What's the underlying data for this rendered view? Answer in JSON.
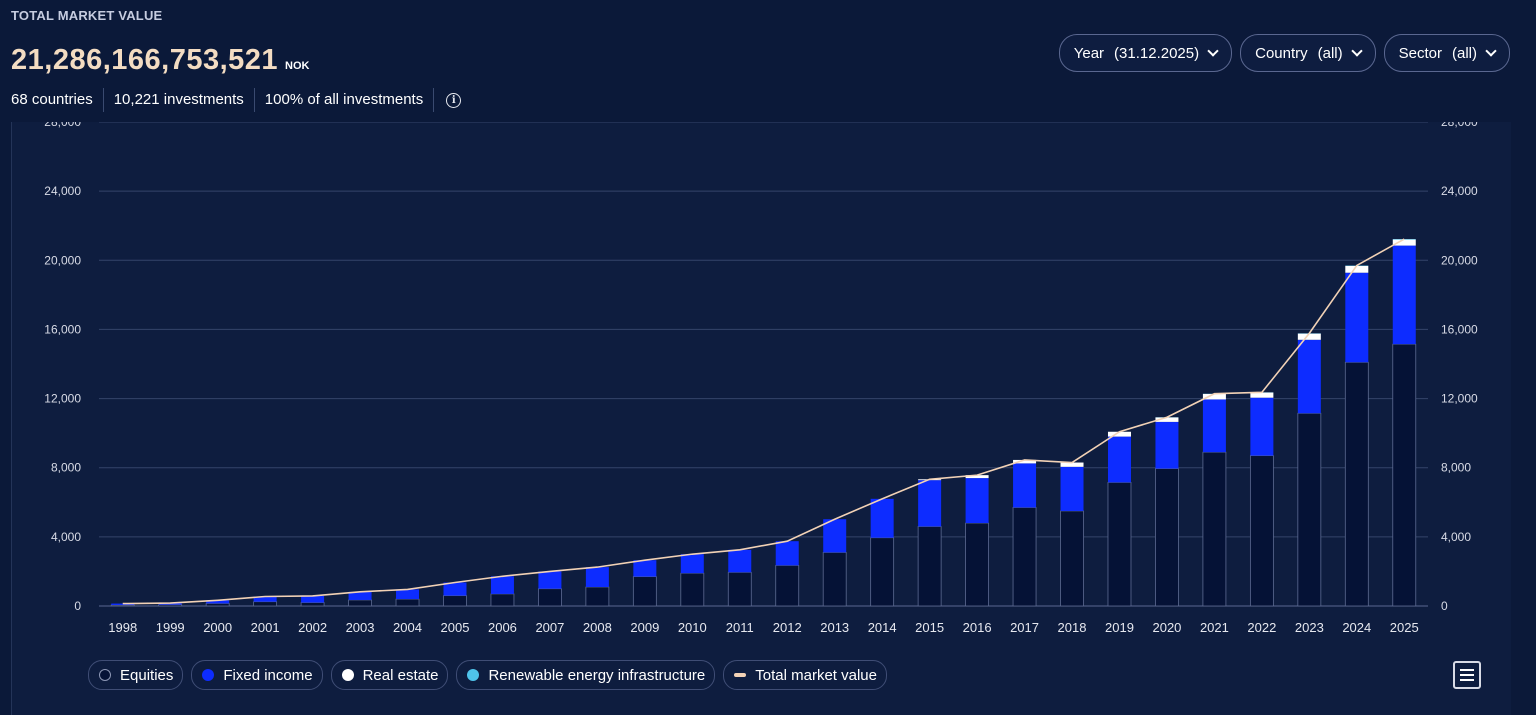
{
  "header": {
    "label": "TOTAL MARKET VALUE",
    "total_value": "21,286,166,753,521",
    "unit": "NOK"
  },
  "stats": {
    "countries": "68 countries",
    "investments": "10,221 investments",
    "share": "100% of all investments",
    "info_icon": "info-icon"
  },
  "filters": [
    {
      "label": "Year",
      "value": "(31.12.2025)"
    },
    {
      "label": "Country",
      "value": "(all)"
    },
    {
      "label": "Sector",
      "value": "(all)"
    }
  ],
  "chart_data": {
    "type": "bar",
    "stacked": true,
    "categories": [
      "1998",
      "1999",
      "2000",
      "2001",
      "2002",
      "2003",
      "2004",
      "2005",
      "2006",
      "2007",
      "2008",
      "2009",
      "2010",
      "2011",
      "2012",
      "2013",
      "2014",
      "2015",
      "2016",
      "2017",
      "2018",
      "2019",
      "2020",
      "2021",
      "2022",
      "2023",
      "2024",
      "2025"
    ],
    "series": [
      {
        "name": "Equities",
        "color": "#051236",
        "values": [
          60,
          80,
          150,
          250,
          200,
          350,
          400,
          600,
          700,
          1000,
          1100,
          1700,
          1900,
          1950,
          2350,
          3100,
          3950,
          4600,
          4800,
          5700,
          5500,
          7150,
          7950,
          8900,
          8700,
          11150,
          14100,
          15150
        ]
      },
      {
        "name": "Fixed income",
        "color": "#0d2cff",
        "values": [
          80,
          90,
          180,
          300,
          380,
          470,
          560,
          760,
          1020,
          1000,
          1150,
          950,
          1100,
          1300,
          1400,
          1920,
          2250,
          2680,
          2600,
          2550,
          2550,
          2650,
          2700,
          3050,
          3350,
          4250,
          5180,
          5700
        ]
      },
      {
        "name": "Real estate",
        "color": "#ffffff",
        "values": [
          0,
          0,
          0,
          0,
          0,
          0,
          0,
          0,
          0,
          0,
          0,
          0,
          0,
          0,
          0,
          0,
          0,
          50,
          170,
          200,
          250,
          280,
          260,
          320,
          300,
          360,
          400,
          350
        ]
      },
      {
        "name": "Renewable energy infrastructure",
        "color": "#4fc3ea",
        "values": [
          0,
          0,
          0,
          0,
          0,
          0,
          0,
          0,
          0,
          0,
          0,
          0,
          0,
          0,
          0,
          0,
          0,
          0,
          0,
          0,
          0,
          0,
          10,
          10,
          10,
          15,
          20,
          30
        ]
      }
    ],
    "line": {
      "name": "Total market value",
      "color": "#f2d2b6",
      "values": [
        140,
        170,
        330,
        550,
        580,
        820,
        960,
        1360,
        1720,
        2000,
        2250,
        2650,
        3000,
        3250,
        3750,
        5020,
        6200,
        7330,
        7570,
        8450,
        8300,
        10080,
        10920,
        12280,
        12360,
        15780,
        19700,
        21230
      ]
    },
    "ylim": [
      0,
      28000
    ],
    "yticks": [
      "0",
      "4,000",
      "8,000",
      "12,000",
      "16,000",
      "20,000",
      "24,000",
      "28,000"
    ],
    "grid": true,
    "legend_position": "bottom-left"
  },
  "menu_icon": "hamburger-menu-icon"
}
